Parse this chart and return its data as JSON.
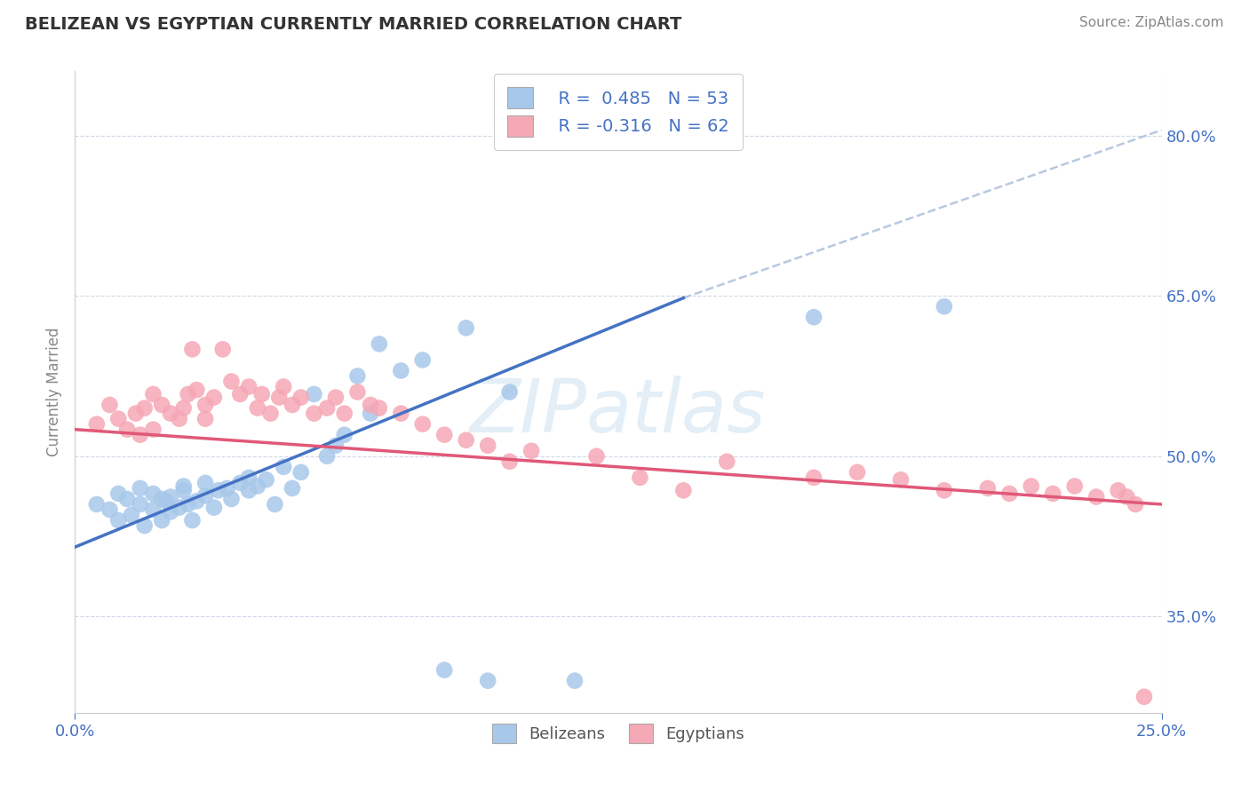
{
  "title": "BELIZEAN VS EGYPTIAN CURRENTLY MARRIED CORRELATION CHART",
  "source": "Source: ZipAtlas.com",
  "ylabel": "Currently Married",
  "watermark": "ZIPatlas",
  "legend_r_blue": "R =  0.485",
  "legend_n_blue": "N = 53",
  "legend_r_pink": "R = -0.316",
  "legend_n_pink": "N = 62",
  "legend_label_blue": "Belizeans",
  "legend_label_pink": "Egyptians",
  "xmin": 0.0,
  "xmax": 0.25,
  "ymin": 0.26,
  "ymax": 0.86,
  "yticks": [
    0.35,
    0.5,
    0.65,
    0.8
  ],
  "ytick_labels": [
    "35.0%",
    "50.0%",
    "65.0%",
    "80.0%"
  ],
  "xticks": [
    0.0,
    0.25
  ],
  "xtick_labels": [
    "0.0%",
    "25.0%"
  ],
  "blue_color": "#a8c8ea",
  "pink_color": "#f5a8b5",
  "blue_line_color": "#4472c4",
  "pink_line_color": "#e05878",
  "dashed_line_color": "#b8c8e0",
  "background_color": "#ffffff",
  "blue_scatter_x": [
    0.005,
    0.008,
    0.01,
    0.01,
    0.012,
    0.013,
    0.015,
    0.015,
    0.016,
    0.018,
    0.018,
    0.02,
    0.02,
    0.021,
    0.022,
    0.022,
    0.024,
    0.025,
    0.025,
    0.026,
    0.027,
    0.028,
    0.03,
    0.03,
    0.032,
    0.033,
    0.035,
    0.036,
    0.038,
    0.04,
    0.04,
    0.042,
    0.044,
    0.046,
    0.048,
    0.05,
    0.052,
    0.055,
    0.058,
    0.06,
    0.062,
    0.065,
    0.068,
    0.07,
    0.075,
    0.08,
    0.085,
    0.09,
    0.095,
    0.1,
    0.115,
    0.17,
    0.2
  ],
  "blue_scatter_y": [
    0.455,
    0.45,
    0.44,
    0.465,
    0.46,
    0.445,
    0.47,
    0.455,
    0.435,
    0.45,
    0.465,
    0.44,
    0.46,
    0.458,
    0.448,
    0.462,
    0.452,
    0.468,
    0.472,
    0.455,
    0.44,
    0.458,
    0.463,
    0.475,
    0.452,
    0.468,
    0.47,
    0.46,
    0.475,
    0.468,
    0.48,
    0.472,
    0.478,
    0.455,
    0.49,
    0.47,
    0.485,
    0.558,
    0.5,
    0.51,
    0.52,
    0.575,
    0.54,
    0.605,
    0.58,
    0.59,
    0.3,
    0.62,
    0.29,
    0.56,
    0.29,
    0.63,
    0.64
  ],
  "pink_scatter_x": [
    0.005,
    0.008,
    0.01,
    0.012,
    0.014,
    0.015,
    0.016,
    0.018,
    0.018,
    0.02,
    0.022,
    0.024,
    0.025,
    0.026,
    0.027,
    0.028,
    0.03,
    0.03,
    0.032,
    0.034,
    0.036,
    0.038,
    0.04,
    0.042,
    0.043,
    0.045,
    0.047,
    0.048,
    0.05,
    0.052,
    0.055,
    0.058,
    0.06,
    0.062,
    0.065,
    0.068,
    0.07,
    0.075,
    0.08,
    0.085,
    0.09,
    0.095,
    0.1,
    0.105,
    0.12,
    0.13,
    0.14,
    0.15,
    0.17,
    0.18,
    0.19,
    0.2,
    0.21,
    0.215,
    0.22,
    0.225,
    0.23,
    0.235,
    0.24,
    0.242,
    0.244,
    0.246
  ],
  "pink_scatter_y": [
    0.53,
    0.548,
    0.535,
    0.525,
    0.54,
    0.52,
    0.545,
    0.558,
    0.525,
    0.548,
    0.54,
    0.535,
    0.545,
    0.558,
    0.6,
    0.562,
    0.535,
    0.548,
    0.555,
    0.6,
    0.57,
    0.558,
    0.565,
    0.545,
    0.558,
    0.54,
    0.555,
    0.565,
    0.548,
    0.555,
    0.54,
    0.545,
    0.555,
    0.54,
    0.56,
    0.548,
    0.545,
    0.54,
    0.53,
    0.52,
    0.515,
    0.51,
    0.495,
    0.505,
    0.5,
    0.48,
    0.468,
    0.495,
    0.48,
    0.485,
    0.478,
    0.468,
    0.47,
    0.465,
    0.472,
    0.465,
    0.472,
    0.462,
    0.468,
    0.462,
    0.455,
    0.275
  ]
}
